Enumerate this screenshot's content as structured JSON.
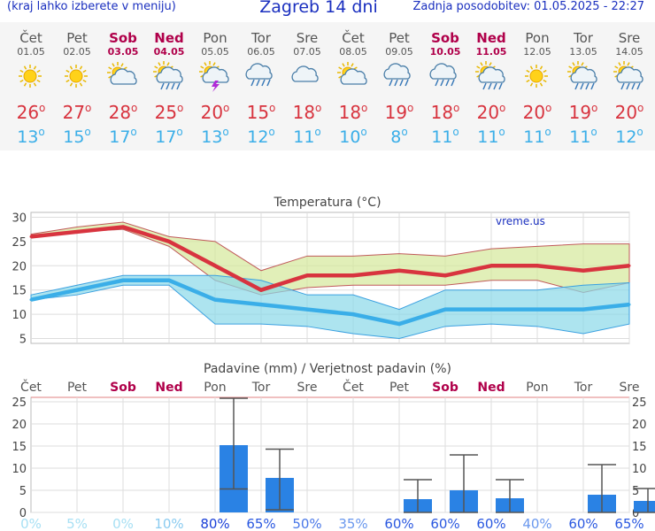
{
  "header": {
    "left": "(kraj lahko izberete v meniju)",
    "title": "Zagreb 14 dni",
    "updated": "Zadnja posodobitev: 01.05.2025 - 22:27"
  },
  "days": [
    {
      "name": "Čet",
      "date": "01.05",
      "weekend": false,
      "icon": "sun-icon",
      "high": "26",
      "low": "13"
    },
    {
      "name": "Pet",
      "date": "02.05",
      "weekend": false,
      "icon": "sun-icon",
      "high": "27",
      "low": "15"
    },
    {
      "name": "Sob",
      "date": "03.05",
      "weekend": true,
      "icon": "partly-cloudy-icon",
      "high": "28",
      "low": "17"
    },
    {
      "name": "Ned",
      "date": "04.05",
      "weekend": true,
      "icon": "sun-cloud-rain-icon",
      "high": "25",
      "low": "17"
    },
    {
      "name": "Pon",
      "date": "05.05",
      "weekend": false,
      "icon": "thunderstorm-icon",
      "high": "20",
      "low": "13"
    },
    {
      "name": "Tor",
      "date": "06.05",
      "weekend": false,
      "icon": "cloud-rain-icon",
      "high": "15",
      "low": "12"
    },
    {
      "name": "Sre",
      "date": "07.05",
      "weekend": false,
      "icon": "cloud-icon",
      "high": "18",
      "low": "11"
    },
    {
      "name": "Čet",
      "date": "08.05",
      "weekend": false,
      "icon": "partly-cloudy-icon",
      "high": "18",
      "low": "10"
    },
    {
      "name": "Pet",
      "date": "09.05",
      "weekend": false,
      "icon": "cloud-rain-icon",
      "high": "19",
      "low": "8"
    },
    {
      "name": "Sob",
      "date": "10.05",
      "weekend": true,
      "icon": "cloud-rain-icon",
      "high": "18",
      "low": "11"
    },
    {
      "name": "Ned",
      "date": "11.05",
      "weekend": true,
      "icon": "sun-cloud-rain-icon",
      "high": "20",
      "low": "11"
    },
    {
      "name": "Pon",
      "date": "12.05",
      "weekend": false,
      "icon": "sun-icon",
      "high": "20",
      "low": "11"
    },
    {
      "name": "Tor",
      "date": "13.05",
      "weekend": false,
      "icon": "sun-cloud-rain-icon",
      "high": "19",
      "low": "11"
    },
    {
      "name": "Sre",
      "date": "14.05",
      "weekend": false,
      "icon": "sun-cloud-rain-icon",
      "high": "20",
      "low": "12"
    }
  ],
  "colors": {
    "title": "#1a2fbf",
    "weekend": "#b0004a",
    "high": "#d8343f",
    "low": "#3aaee8",
    "band_high": "#d4e89a",
    "band_low": "#8ad8e8",
    "bars": "#2a82e4"
  },
  "chart_data": [
    {
      "type": "line",
      "title": "Temperatura (°C)",
      "watermark": "vreme.us",
      "x": [
        "Čet",
        "Pet",
        "Sob",
        "Ned",
        "Pon",
        "Tor",
        "Sre",
        "Čet",
        "Pet",
        "Sob",
        "Ned",
        "Pon",
        "Tor",
        "Sre"
      ],
      "ylim": [
        4,
        31
      ],
      "yticks": [
        5,
        10,
        15,
        20,
        25,
        30
      ],
      "series": [
        {
          "values": [
            26,
            27,
            28,
            25,
            20,
            15,
            18,
            18,
            19,
            18,
            20,
            20,
            19,
            20
          ]
        },
        {
          "values": [
            13,
            15,
            17,
            17,
            13,
            12,
            11,
            10,
            8,
            11,
            11,
            11,
            11,
            12
          ]
        }
      ],
      "band_high": {
        "upper": [
          26.5,
          28,
          29,
          26,
          25,
          19,
          22,
          22,
          22.5,
          22,
          23.5,
          24,
          24.5,
          24.5
        ],
        "lower": [
          26,
          27,
          27.5,
          24,
          17,
          14,
          15.5,
          16,
          16,
          16,
          17,
          17,
          14.5,
          16.5
        ]
      },
      "band_low": {
        "upper": [
          14,
          16,
          18,
          18,
          18,
          17,
          14,
          14,
          11,
          15,
          15,
          15,
          16,
          16.5
        ],
        "lower": [
          13,
          14,
          16,
          16,
          8,
          8,
          7.5,
          6,
          5,
          7.5,
          8,
          7.5,
          6,
          8
        ]
      },
      "grid": true
    },
    {
      "type": "bar",
      "title": "Padavine (mm) / Verjetnost padavin (%)",
      "categories": [
        "Čet",
        "Pet",
        "Sob",
        "Ned",
        "Pon",
        "Tor",
        "Sre",
        "Čet",
        "Pet",
        "Sob",
        "Ned",
        "Pon",
        "Tor",
        "Sre"
      ],
      "weekend": [
        false,
        false,
        true,
        true,
        false,
        false,
        false,
        false,
        false,
        true,
        true,
        false,
        false,
        false
      ],
      "values": [
        0,
        0,
        0,
        0,
        15.2,
        7.8,
        0,
        0,
        3,
        5,
        3.2,
        0,
        4,
        2.6
      ],
      "range_low": [
        null,
        null,
        null,
        null,
        5.3,
        0.6,
        null,
        null,
        0,
        0,
        0,
        null,
        0,
        0
      ],
      "range_high": [
        null,
        null,
        null,
        null,
        25.8,
        14.3,
        null,
        null,
        7.4,
        13,
        7.4,
        null,
        10.8,
        5.4
      ],
      "probability": [
        "0%",
        "5%",
        "0%",
        "10%",
        "80%",
        "65%",
        "50%",
        "35%",
        "60%",
        "60%",
        "60%",
        "40%",
        "60%",
        "65%"
      ],
      "ylim": [
        0,
        26
      ],
      "yticks": [
        0,
        5,
        10,
        15,
        20,
        25
      ],
      "grid": true
    }
  ]
}
